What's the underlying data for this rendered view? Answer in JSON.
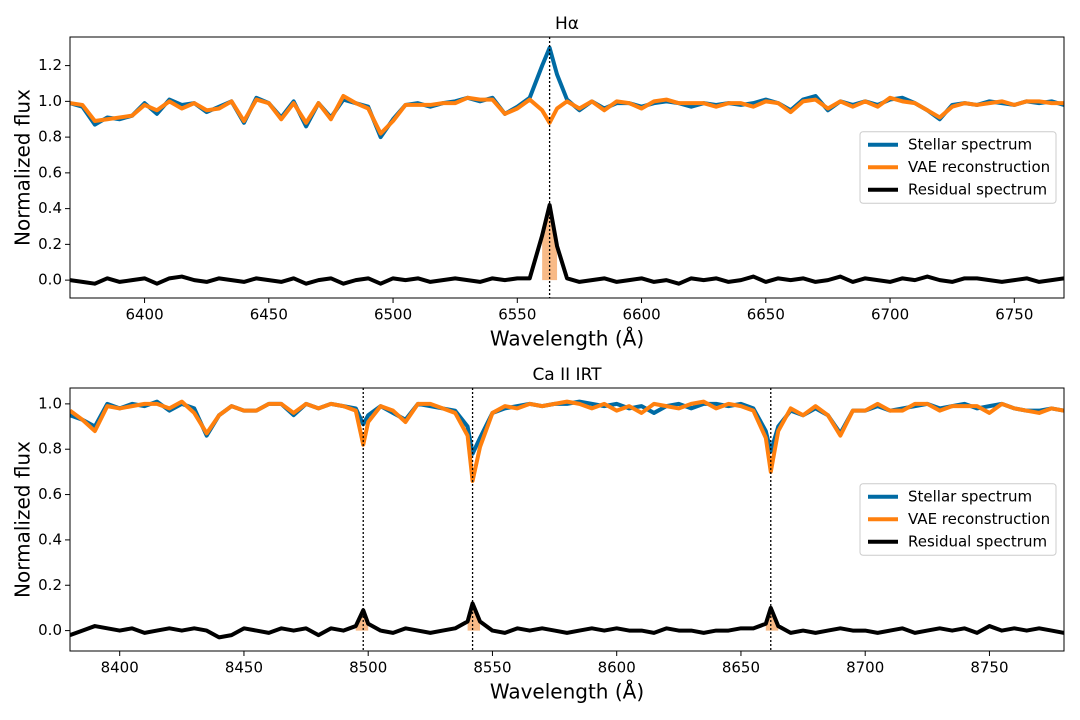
{
  "chart_data": [
    {
      "type": "line",
      "title": "Hα",
      "xlabel": "Wavelength (Å)",
      "ylabel": "Normalized flux",
      "x": [
        6370,
        6375,
        6380,
        6385,
        6390,
        6395,
        6400,
        6405,
        6410,
        6415,
        6420,
        6425,
        6430,
        6435,
        6440,
        6445,
        6450,
        6455,
        6460,
        6465,
        6470,
        6475,
        6480,
        6485,
        6490,
        6495,
        6500,
        6505,
        6510,
        6515,
        6520,
        6525,
        6530,
        6535,
        6540,
        6545,
        6550,
        6555,
        6560,
        6563,
        6566,
        6570,
        6575,
        6580,
        6585,
        6590,
        6595,
        6600,
        6605,
        6610,
        6615,
        6620,
        6625,
        6630,
        6635,
        6640,
        6645,
        6650,
        6655,
        6660,
        6665,
        6670,
        6675,
        6680,
        6685,
        6690,
        6695,
        6700,
        6705,
        6710,
        6715,
        6720,
        6725,
        6730,
        6735,
        6740,
        6745,
        6750,
        6755,
        6760,
        6765,
        6770
      ],
      "series": [
        {
          "name": "Stellar spectrum",
          "color": "#006ba4",
          "values": [
            0.99,
            0.97,
            0.87,
            0.91,
            0.9,
            0.92,
            0.99,
            0.93,
            1.01,
            0.98,
            0.99,
            0.94,
            0.97,
            1.0,
            0.88,
            1.02,
            0.99,
            0.91,
            1.0,
            0.86,
            0.99,
            0.91,
            1.01,
            0.99,
            0.97,
            0.8,
            0.9,
            0.98,
            0.99,
            0.97,
            0.99,
            1.0,
            1.02,
            1.0,
            1.02,
            0.93,
            0.97,
            1.02,
            1.2,
            1.3,
            1.15,
            1.01,
            0.95,
            1.0,
            0.96,
            0.99,
            0.99,
            0.97,
            0.99,
            1.0,
            0.99,
            0.97,
            0.99,
            0.98,
            0.99,
            0.98,
            0.99,
            1.01,
            0.99,
            0.95,
            1.01,
            1.03,
            0.95,
            1.0,
            0.98,
            1.0,
            0.98,
            1.01,
            1.02,
            0.99,
            0.95,
            0.9,
            0.98,
            0.99,
            0.98,
            1.0,
            0.99,
            0.98,
            1.0,
            0.99,
            1.0,
            0.98
          ]
        },
        {
          "name": "VAE reconstruction",
          "color": "#ff800e",
          "values": [
            0.99,
            0.98,
            0.89,
            0.9,
            0.91,
            0.92,
            0.98,
            0.95,
            1.0,
            0.96,
            0.99,
            0.95,
            0.96,
            1.0,
            0.89,
            1.01,
            0.99,
            0.9,
            0.99,
            0.88,
            0.99,
            0.9,
            1.03,
            0.99,
            0.96,
            0.82,
            0.89,
            0.98,
            0.98,
            0.98,
            0.99,
            0.99,
            1.02,
            1.01,
            1.01,
            0.93,
            0.96,
            1.01,
            0.95,
            0.88,
            0.96,
            1.0,
            0.96,
            1.0,
            0.95,
            1.0,
            0.99,
            0.96,
            1.0,
            1.01,
            0.99,
            0.99,
            0.99,
            0.97,
            0.99,
            0.99,
            0.97,
            1.0,
            0.99,
            0.94,
            1.0,
            1.01,
            0.96,
            1.0,
            0.97,
            1.0,
            0.97,
            1.02,
            1.0,
            0.99,
            0.95,
            0.91,
            0.97,
            0.99,
            0.98,
            0.99,
            1.0,
            0.98,
            1.0,
            1.0,
            0.99,
            0.99
          ]
        },
        {
          "name": "Residual spectrum",
          "color": "#000000",
          "values": [
            0,
            -0.01,
            -0.02,
            0.01,
            -0.01,
            0,
            0.01,
            -0.02,
            0.01,
            0.02,
            0,
            -0.01,
            0.01,
            0,
            -0.01,
            0.01,
            0,
            -0.01,
            0.01,
            -0.02,
            0,
            0.01,
            -0.02,
            0,
            0.01,
            -0.02,
            0.01,
            0,
            0.01,
            -0.01,
            0,
            0.01,
            0,
            -0.01,
            0.01,
            0,
            0.01,
            0.01,
            0.25,
            0.42,
            0.19,
            0.01,
            -0.01,
            0,
            0.01,
            -0.01,
            0,
            0.01,
            -0.01,
            0,
            -0.02,
            0.01,
            0,
            0.01,
            -0.01,
            0,
            0.02,
            -0.01,
            0.01,
            0,
            0.01,
            -0.01,
            0,
            0.02,
            -0.01,
            0.01,
            0,
            -0.01,
            0.01,
            0,
            0.02,
            0,
            -0.01,
            0.01,
            0.01,
            0,
            -0.01,
            0,
            0.01,
            -0.01,
            0,
            0.01
          ]
        }
      ],
      "vlines": [
        6563
      ],
      "fill_color": "#f7b27a",
      "xlim": [
        6370,
        6770
      ],
      "xticks": [
        6400,
        6450,
        6500,
        6550,
        6600,
        6650,
        6700,
        6750
      ],
      "ylim": [
        -0.1,
        1.36
      ],
      "yticks": [
        {
          "value": 0,
          "label": "0.0"
        },
        0.2,
        0.4,
        0.6,
        0.8,
        {
          "value": 1,
          "label": "1.0"
        },
        1.2
      ],
      "legend": "center right"
    },
    {
      "type": "line",
      "title": "Ca II IRT",
      "xlabel": "Wavelength (Å)",
      "ylabel": "Normalized flux",
      "x": [
        8380,
        8385,
        8390,
        8395,
        8400,
        8405,
        8410,
        8415,
        8420,
        8425,
        8430,
        8435,
        8440,
        8445,
        8450,
        8455,
        8460,
        8465,
        8470,
        8475,
        8480,
        8485,
        8490,
        8495,
        8498,
        8500,
        8505,
        8510,
        8515,
        8520,
        8525,
        8530,
        8535,
        8540,
        8542,
        8545,
        8550,
        8555,
        8560,
        8565,
        8570,
        8575,
        8580,
        8585,
        8590,
        8595,
        8600,
        8605,
        8610,
        8615,
        8620,
        8625,
        8630,
        8635,
        8640,
        8645,
        8650,
        8655,
        8660,
        8662,
        8665,
        8670,
        8675,
        8680,
        8685,
        8690,
        8695,
        8700,
        8705,
        8710,
        8715,
        8720,
        8725,
        8730,
        8735,
        8740,
        8745,
        8750,
        8755,
        8760,
        8765,
        8770,
        8775,
        8780
      ],
      "series": [
        {
          "name": "Stellar spectrum",
          "color": "#006ba4",
          "values": [
            0.95,
            0.93,
            0.9,
            1.0,
            0.98,
            1.0,
            0.99,
            1.01,
            0.97,
            1.0,
            0.98,
            0.86,
            0.95,
            0.99,
            0.97,
            0.97,
            1.0,
            1.0,
            0.95,
            1.0,
            0.98,
            1.0,
            0.99,
            0.98,
            0.91,
            0.95,
            0.99,
            0.96,
            0.93,
            1.0,
            0.99,
            0.98,
            0.97,
            0.9,
            0.78,
            0.85,
            0.96,
            0.98,
            0.99,
            1.0,
            0.99,
            1.0,
            1.0,
            1.01,
            1.0,
            0.99,
            1.0,
            0.98,
            0.99,
            0.96,
            0.99,
            1.0,
            0.98,
            1.0,
            1.0,
            0.99,
            1.0,
            0.98,
            0.88,
            0.79,
            0.9,
            0.97,
            0.95,
            0.98,
            0.95,
            0.87,
            0.97,
            0.97,
            0.99,
            0.97,
            0.98,
            0.99,
            1.0,
            0.98,
            0.99,
            1.0,
            0.98,
            0.99,
            1.0,
            0.98,
            0.97,
            0.97,
            0.98,
            0.97
          ]
        },
        {
          "name": "VAE reconstruction",
          "color": "#ff800e",
          "values": [
            0.97,
            0.93,
            0.88,
            0.99,
            0.98,
            0.99,
            1.0,
            1.0,
            0.98,
            1.01,
            0.96,
            0.87,
            0.95,
            0.99,
            0.97,
            0.97,
            1.0,
            1.0,
            0.96,
            1.0,
            0.98,
            1.0,
            0.99,
            0.97,
            0.82,
            0.92,
            0.99,
            0.97,
            0.92,
            1.0,
            1.0,
            0.98,
            0.96,
            0.86,
            0.66,
            0.81,
            0.96,
            0.99,
            0.98,
            1.0,
            0.99,
            1.0,
            1.01,
            1.0,
            0.98,
            1.0,
            0.97,
            0.99,
            0.96,
            1.0,
            0.99,
            0.98,
            1.0,
            1.01,
            0.98,
            1.0,
            0.99,
            0.97,
            0.85,
            0.7,
            0.88,
            0.98,
            0.95,
            0.99,
            0.95,
            0.86,
            0.97,
            0.97,
            1.0,
            0.97,
            0.97,
            1.0,
            1.0,
            0.97,
            0.99,
            0.99,
            0.99,
            0.96,
            1.0,
            0.98,
            0.97,
            0.96,
            0.98,
            0.97
          ]
        },
        {
          "name": "Residual spectrum",
          "color": "#000000",
          "values": [
            -0.02,
            0,
            0.02,
            0.01,
            0,
            0.01,
            -0.01,
            0,
            0.01,
            0,
            0.01,
            0,
            -0.03,
            -0.02,
            0.01,
            0,
            -0.01,
            0.01,
            0,
            0.01,
            -0.02,
            0.01,
            0,
            0.02,
            0.09,
            0.03,
            0,
            -0.01,
            0.01,
            0,
            -0.01,
            0,
            0.01,
            0.04,
            0.12,
            0.04,
            0,
            -0.01,
            0.01,
            0,
            0.01,
            0,
            -0.01,
            0,
            0.01,
            0,
            0.01,
            0,
            0,
            -0.01,
            0.01,
            0,
            0,
            -0.01,
            0,
            0,
            0.01,
            0.01,
            0.03,
            0.1,
            0.02,
            -0.01,
            0,
            -0.01,
            0,
            0.01,
            0,
            0,
            -0.01,
            0,
            0.01,
            -0.01,
            0,
            0.01,
            0,
            0.01,
            -0.01,
            0.02,
            0,
            0.01,
            0,
            0.01,
            0,
            -0.01
          ]
        }
      ],
      "vlines": [
        8498,
        8542,
        8662
      ],
      "fill_color": "#f7b27a",
      "xlim": [
        8380,
        8780
      ],
      "xticks": [
        8400,
        8450,
        8500,
        8550,
        8600,
        8650,
        8700,
        8750
      ],
      "ylim": [
        -0.09,
        1.07
      ],
      "yticks": [
        {
          "value": 0,
          "label": "0.0"
        },
        0.2,
        0.4,
        0.6,
        0.8,
        {
          "value": 1,
          "label": "1.0"
        }
      ],
      "legend": "center right"
    }
  ]
}
